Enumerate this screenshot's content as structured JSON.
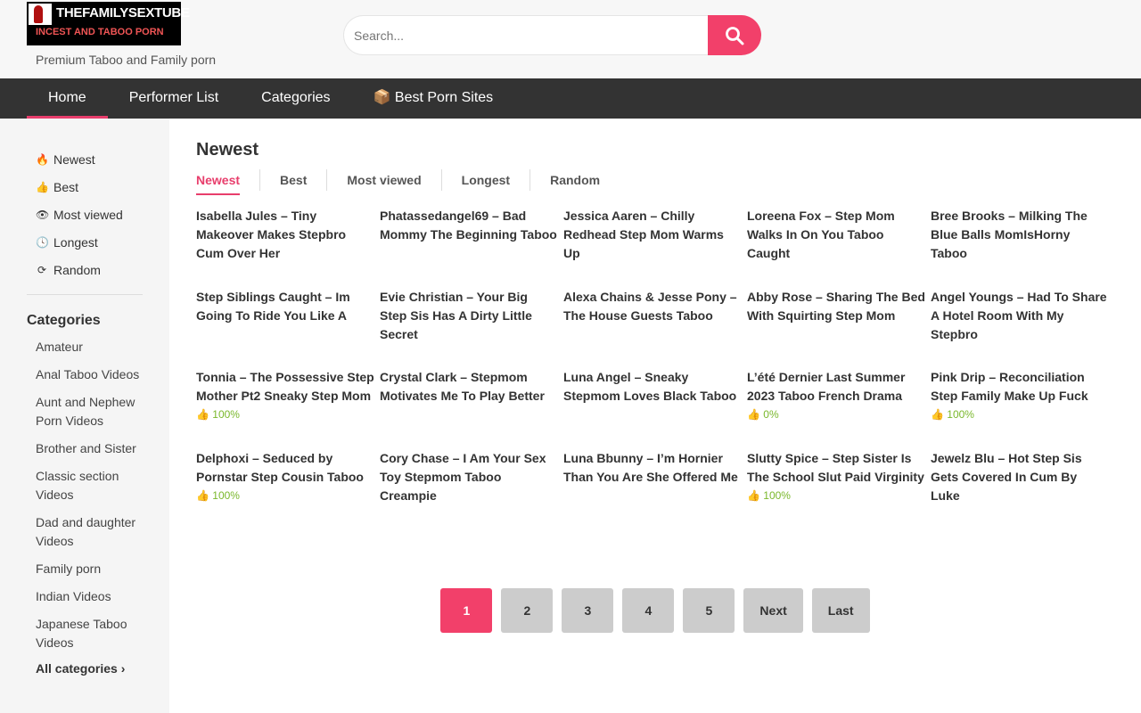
{
  "header": {
    "logo_line1": "THEFAMILYSEXTUBE",
    "logo_line2": "INCEST AND TABOO PORN",
    "tagline": "Premium Taboo and Family porn",
    "search_placeholder": "Search..."
  },
  "nav": [
    "Home",
    "Performer List",
    "Categories",
    "Best Porn Sites"
  ],
  "sidebar": {
    "filters": [
      {
        "icon": "fire-icon",
        "label": "Newest"
      },
      {
        "icon": "thumbs-up-icon",
        "label": "Best"
      },
      {
        "icon": "eye-icon",
        "label": "Most viewed"
      },
      {
        "icon": "clock-icon",
        "label": "Longest"
      },
      {
        "icon": "refresh-icon",
        "label": "Random"
      }
    ],
    "categories_title": "Categories",
    "categories": [
      "Amateur",
      "Anal Taboo Videos",
      "Aunt and Nephew Porn Videos",
      "Brother and Sister",
      "Classic section Videos",
      "Dad and daughter Videos",
      "Family porn",
      "Indian Videos",
      "Japanese Taboo Videos"
    ],
    "all_categories": "All categories"
  },
  "main": {
    "title": "Newest",
    "tabs": [
      "Newest",
      "Best",
      "Most viewed",
      "Longest",
      "Random"
    ],
    "videos": [
      {
        "title": "Isabella Jules – Tiny Makeover Makes Stepbro Cum Over Her",
        "rating": ""
      },
      {
        "title": "Phatassedangel69 – Bad Mommy The Beginning Taboo",
        "rating": ""
      },
      {
        "title": "Jessica Aaren – Chilly Redhead Step Mom Warms Up",
        "rating": ""
      },
      {
        "title": "Loreena Fox – Step Mom Walks In On You Taboo Caught",
        "rating": ""
      },
      {
        "title": "Bree Brooks – Milking The Blue Balls MomIsHorny Taboo",
        "rating": ""
      },
      {
        "title": "Step Siblings Caught – Im Going To Ride You Like A",
        "rating": ""
      },
      {
        "title": "Evie Christian – Your Big Step Sis Has A Dirty Little Secret",
        "rating": ""
      },
      {
        "title": "Alexa Chains & Jesse Pony – The House Guests Taboo",
        "rating": ""
      },
      {
        "title": "Abby Rose – Sharing The Bed With Squirting Step Mom",
        "rating": ""
      },
      {
        "title": "Angel Youngs – Had To Share A Hotel Room With My Stepbro",
        "rating": ""
      },
      {
        "title": "Tonnia – The Possessive Step Mother Pt2 Sneaky Step Mom",
        "rating": "100%"
      },
      {
        "title": "Crystal Clark – Stepmom Motivates Me To Play Better",
        "rating": ""
      },
      {
        "title": "Luna Angel – Sneaky Stepmom Loves Black Taboo",
        "rating": ""
      },
      {
        "title": "L’été Dernier Last Summer 2023 Taboo French Drama",
        "rating": "0%"
      },
      {
        "title": "Pink Drip – Reconciliation Step Family Make Up Fuck",
        "rating": "100%"
      },
      {
        "title": "Delphoxi – Seduced by Pornstar Step Cousin Taboo",
        "rating": "100%"
      },
      {
        "title": "Cory Chase – I Am Your Sex Toy Stepmom Taboo Creampie",
        "rating": ""
      },
      {
        "title": "Luna Bbunny – I’m Hornier Than You Are She Offered Me",
        "rating": ""
      },
      {
        "title": "Slutty Spice – Step Sister Is The School Slut Paid Virginity",
        "rating": "100%"
      },
      {
        "title": "Jewelz Blu – Hot Step Sis Gets Covered In Cum By Luke",
        "rating": ""
      }
    ]
  },
  "pagination": {
    "pages": [
      "1",
      "2",
      "3",
      "4",
      "5",
      "Next",
      "Last"
    ],
    "current": "1"
  },
  "colors": {
    "accent": "#f2406a",
    "nav_bg": "#333333",
    "rating": "#7ab82c"
  }
}
